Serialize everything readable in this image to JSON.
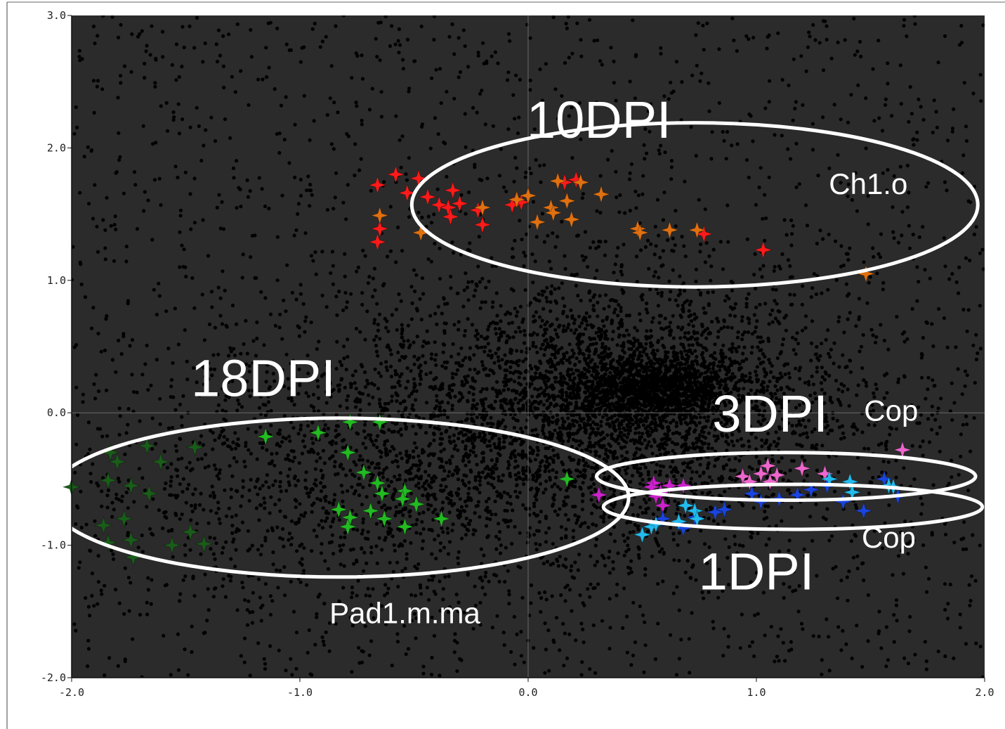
{
  "chart_data": {
    "type": "scatter",
    "title": "",
    "xlabel": "",
    "ylabel": "",
    "xlim": [
      -2.0,
      2.0
    ],
    "ylim": [
      -2.0,
      3.0
    ],
    "x_ticks": [
      "-2.0",
      "-1.0",
      "0.0",
      "1.0",
      "2.0"
    ],
    "y_ticks": [
      "3.0",
      "2.0",
      "1.0",
      "0.0",
      "-1.0",
      "-2.0"
    ],
    "grid": "axes through origin",
    "background_color": "#2b2b2b",
    "background_point_color": "#000000",
    "series": [
      {
        "color": "#ff1a1a",
        "marker": "star",
        "points": [
          [
            -0.66,
            1.72
          ],
          [
            -0.58,
            1.8
          ],
          [
            -0.53,
            1.66
          ],
          [
            -0.48,
            1.77
          ],
          [
            -0.44,
            1.63
          ],
          [
            -0.39,
            1.57
          ],
          [
            -0.35,
            1.55
          ],
          [
            -0.33,
            1.68
          ],
          [
            -0.3,
            1.58
          ],
          [
            -0.34,
            1.48
          ],
          [
            -0.22,
            1.53
          ],
          [
            -0.2,
            1.42
          ],
          [
            -0.65,
            1.39
          ],
          [
            -0.66,
            1.29
          ],
          [
            -0.03,
            1.59
          ],
          [
            -0.07,
            1.57
          ],
          [
            0.16,
            1.74
          ],
          [
            0.21,
            1.76
          ],
          [
            0.77,
            1.35
          ],
          [
            1.03,
            1.23
          ]
        ]
      },
      {
        "color": "#e07010",
        "marker": "star",
        "points": [
          [
            -0.65,
            1.49
          ],
          [
            -0.47,
            1.36
          ],
          [
            -0.2,
            1.55
          ],
          [
            -0.05,
            1.61
          ],
          [
            0.0,
            1.64
          ],
          [
            0.04,
            1.44
          ],
          [
            0.1,
            1.55
          ],
          [
            0.11,
            1.51
          ],
          [
            0.13,
            1.75
          ],
          [
            0.17,
            1.6
          ],
          [
            0.19,
            1.46
          ],
          [
            0.23,
            1.74
          ],
          [
            0.32,
            1.65
          ],
          [
            0.48,
            1.39
          ],
          [
            0.49,
            1.36
          ],
          [
            0.62,
            1.38
          ],
          [
            0.74,
            1.38
          ],
          [
            1.48,
            1.05
          ]
        ]
      },
      {
        "color": "#1a5c1a",
        "marker": "star",
        "points": [
          [
            -2.0,
            -0.56
          ],
          [
            -1.83,
            -0.3
          ],
          [
            -1.8,
            -0.37
          ],
          [
            -1.84,
            -0.51
          ],
          [
            -1.74,
            -0.55
          ],
          [
            -1.67,
            -0.25
          ],
          [
            -1.61,
            -0.37
          ],
          [
            -1.66,
            -0.61
          ],
          [
            -1.46,
            -0.26
          ],
          [
            -1.86,
            -0.85
          ],
          [
            -1.77,
            -0.8
          ],
          [
            -1.84,
            -0.98
          ],
          [
            -1.74,
            -0.96
          ],
          [
            -1.73,
            -1.09
          ],
          [
            -1.56,
            -1.0
          ],
          [
            -1.48,
            -0.9
          ],
          [
            -1.42,
            -0.99
          ]
        ]
      },
      {
        "color": "#22bb22",
        "marker": "star",
        "points": [
          [
            -1.15,
            -0.18
          ],
          [
            -0.92,
            -0.15
          ],
          [
            -0.78,
            -0.07
          ],
          [
            -0.65,
            -0.07
          ],
          [
            -0.79,
            -0.3
          ],
          [
            -0.72,
            -0.45
          ],
          [
            -0.66,
            -0.53
          ],
          [
            -0.64,
            -0.61
          ],
          [
            -0.54,
            -0.59
          ],
          [
            -0.55,
            -0.65
          ],
          [
            -0.49,
            -0.69
          ],
          [
            -0.83,
            -0.73
          ],
          [
            -0.78,
            -0.79
          ],
          [
            -0.79,
            -0.86
          ],
          [
            -0.69,
            -0.74
          ],
          [
            -0.63,
            -0.8
          ],
          [
            -0.54,
            -0.86
          ],
          [
            -0.38,
            -0.8
          ],
          [
            0.17,
            -0.5
          ]
        ]
      },
      {
        "color": "#cc22cc",
        "marker": "star",
        "points": [
          [
            0.31,
            -0.62
          ],
          [
            0.55,
            -0.53
          ],
          [
            0.54,
            -0.56
          ],
          [
            0.58,
            -0.6
          ],
          [
            0.62,
            -0.55
          ],
          [
            0.68,
            -0.55
          ],
          [
            0.56,
            -0.63
          ],
          [
            0.59,
            -0.7
          ]
        ]
      },
      {
        "color": "#ee66cc",
        "marker": "star",
        "points": [
          [
            0.94,
            -0.48
          ],
          [
            0.97,
            -0.52
          ],
          [
            1.02,
            -0.46
          ],
          [
            1.05,
            -0.4
          ],
          [
            1.06,
            -0.52
          ],
          [
            1.09,
            -0.47
          ],
          [
            1.2,
            -0.42
          ],
          [
            1.3,
            -0.46
          ],
          [
            1.64,
            -0.28
          ]
        ]
      },
      {
        "color": "#1a44dd",
        "marker": "star",
        "points": [
          [
            0.59,
            -0.8
          ],
          [
            0.68,
            -0.87
          ],
          [
            0.73,
            -0.79
          ],
          [
            0.82,
            -0.75
          ],
          [
            0.86,
            -0.73
          ],
          [
            0.98,
            -0.61
          ],
          [
            1.02,
            -0.67
          ],
          [
            1.1,
            -0.65
          ],
          [
            1.18,
            -0.62
          ],
          [
            1.24,
            -0.58
          ],
          [
            1.31,
            -0.55
          ],
          [
            1.38,
            -0.67
          ],
          [
            1.47,
            -0.74
          ],
          [
            1.56,
            -0.5
          ],
          [
            1.62,
            -0.63
          ]
        ]
      },
      {
        "color": "#22bbee",
        "marker": "star",
        "points": [
          [
            0.5,
            -0.92
          ],
          [
            0.54,
            -0.86
          ],
          [
            0.56,
            -0.84
          ],
          [
            0.69,
            -0.7
          ],
          [
            0.73,
            -0.74
          ],
          [
            0.74,
            -0.8
          ],
          [
            0.66,
            -0.82
          ],
          [
            1.32,
            -0.5
          ],
          [
            1.41,
            -0.52
          ],
          [
            1.42,
            -0.6
          ],
          [
            1.58,
            -0.55
          ],
          [
            1.6,
            -0.56
          ]
        ]
      }
    ],
    "annotations": [
      {
        "text": "10DPI",
        "x": 0.31,
        "y": 2.18,
        "size": "large"
      },
      {
        "text": "18DPI",
        "x": -1.16,
        "y": 0.23,
        "size": "large"
      },
      {
        "text": "3DPI",
        "x": 1.06,
        "y": -0.04,
        "size": "large"
      },
      {
        "text": "1DPI",
        "x": 1.0,
        "y": -1.23,
        "size": "large"
      },
      {
        "text": "Ch1.o",
        "x": 1.49,
        "y": 1.71,
        "size": "small"
      },
      {
        "text": "Cop",
        "x": 1.59,
        "y": 0.0,
        "size": "small"
      },
      {
        "text": "Cop",
        "x": 1.58,
        "y": -0.96,
        "size": "small"
      },
      {
        "text": "Pad1.m.ma",
        "x": -0.54,
        "y": -1.53,
        "size": "small"
      }
    ],
    "ellipses": [
      {
        "cx": 0.73,
        "cy": 1.57,
        "rx": 1.24,
        "ry": 0.62,
        "label": "10DPI"
      },
      {
        "cx": -0.83,
        "cy": -0.64,
        "rx": 1.27,
        "ry": 0.6,
        "label": "18DPI"
      },
      {
        "cx": 1.13,
        "cy": -0.48,
        "rx": 0.83,
        "ry": 0.18,
        "label": "3DPI"
      },
      {
        "cx": 1.16,
        "cy": -0.71,
        "rx": 0.83,
        "ry": 0.17,
        "label": "1DPI"
      }
    ]
  }
}
